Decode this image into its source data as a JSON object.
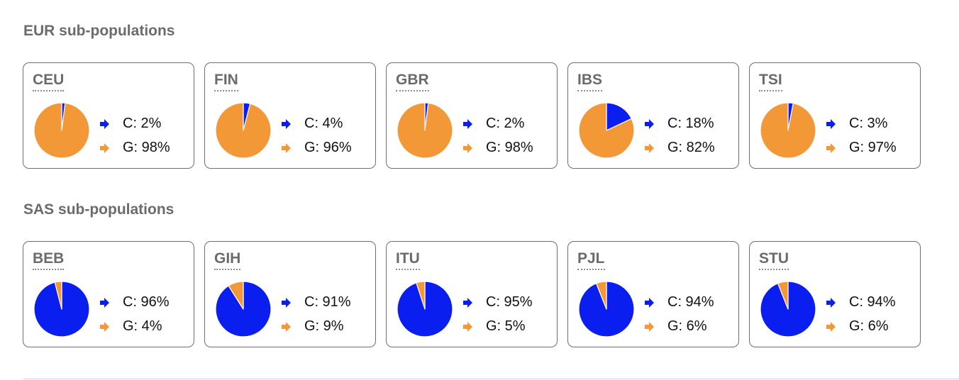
{
  "colors": {
    "C": "#0a1ef0",
    "G": "#f29837"
  },
  "chart_data": [
    {
      "type": "pie",
      "title": "EUR sub-populations",
      "panels": [
        {
          "name": "CEU",
          "slices": [
            {
              "label": "C",
              "value": 2,
              "text": "C: 2%"
            },
            {
              "label": "G",
              "value": 98,
              "text": "G: 98%"
            }
          ]
        },
        {
          "name": "FIN",
          "slices": [
            {
              "label": "C",
              "value": 4,
              "text": "C: 4%"
            },
            {
              "label": "G",
              "value": 96,
              "text": "G: 96%"
            }
          ]
        },
        {
          "name": "GBR",
          "slices": [
            {
              "label": "C",
              "value": 2,
              "text": "C: 2%"
            },
            {
              "label": "G",
              "value": 98,
              "text": "G: 98%"
            }
          ]
        },
        {
          "name": "IBS",
          "slices": [
            {
              "label": "C",
              "value": 18,
              "text": "C: 18%"
            },
            {
              "label": "G",
              "value": 82,
              "text": "G: 82%"
            }
          ]
        },
        {
          "name": "TSI",
          "slices": [
            {
              "label": "C",
              "value": 3,
              "text": "C: 3%"
            },
            {
              "label": "G",
              "value": 97,
              "text": "G: 97%"
            }
          ]
        }
      ]
    },
    {
      "type": "pie",
      "title": "SAS sub-populations",
      "panels": [
        {
          "name": "BEB",
          "slices": [
            {
              "label": "C",
              "value": 96,
              "text": "C: 96%"
            },
            {
              "label": "G",
              "value": 4,
              "text": "G: 4%"
            }
          ]
        },
        {
          "name": "GIH",
          "slices": [
            {
              "label": "C",
              "value": 91,
              "text": "C: 91%"
            },
            {
              "label": "G",
              "value": 9,
              "text": "G: 9%"
            }
          ]
        },
        {
          "name": "ITU",
          "slices": [
            {
              "label": "C",
              "value": 95,
              "text": "C: 95%"
            },
            {
              "label": "G",
              "value": 5,
              "text": "G: 5%"
            }
          ]
        },
        {
          "name": "PJL",
          "slices": [
            {
              "label": "C",
              "value": 94,
              "text": "C: 94%"
            },
            {
              "label": "G",
              "value": 6,
              "text": "G: 6%"
            }
          ]
        },
        {
          "name": "STU",
          "slices": [
            {
              "label": "C",
              "value": 94,
              "text": "C: 94%"
            },
            {
              "label": "G",
              "value": 6,
              "text": "G: 6%"
            }
          ]
        }
      ]
    }
  ]
}
